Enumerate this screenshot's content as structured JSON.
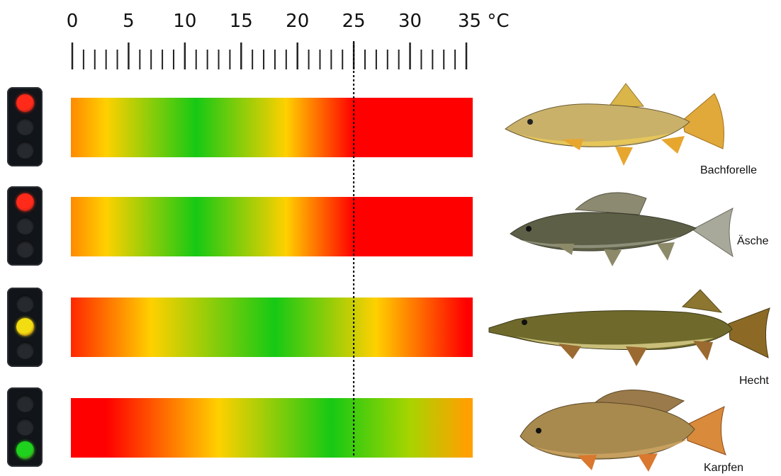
{
  "scale": {
    "unit": "°C",
    "tick_labels": [
      "0",
      "5",
      "10",
      "15",
      "20",
      "25",
      "30",
      "35 °C"
    ],
    "min": 0,
    "max": 35,
    "minor_step": 1,
    "marked_temperature": 25
  },
  "colors": {
    "red": "#ff0000",
    "orange": "#ff8c00",
    "yellow": "#ffd400",
    "green": "#16c914"
  },
  "rows": [
    {
      "name": "Bachforelle",
      "light": "red",
      "gradient_stops": [
        {
          "t": 0,
          "color": "#ff8c00"
        },
        {
          "t": 3,
          "color": "#ffd000"
        },
        {
          "t": 11,
          "color": "#16c914"
        },
        {
          "t": 19,
          "color": "#ffd000"
        },
        {
          "t": 25,
          "color": "#ff0000"
        },
        {
          "t": 35,
          "color": "#ff0000"
        }
      ]
    },
    {
      "name": "Äsche",
      "light": "red",
      "gradient_stops": [
        {
          "t": 0,
          "color": "#ff8c00"
        },
        {
          "t": 3,
          "color": "#ffd000"
        },
        {
          "t": 11,
          "color": "#16c914"
        },
        {
          "t": 19,
          "color": "#ffd000"
        },
        {
          "t": 25,
          "color": "#ff0000"
        },
        {
          "t": 35,
          "color": "#ff0000"
        }
      ]
    },
    {
      "name": "Hecht",
      "light": "yellow",
      "gradient_stops": [
        {
          "t": 0,
          "color": "#ff2a00"
        },
        {
          "t": 7,
          "color": "#ffd000"
        },
        {
          "t": 18,
          "color": "#16c914"
        },
        {
          "t": 27,
          "color": "#ffd000"
        },
        {
          "t": 35,
          "color": "#ff0000"
        }
      ]
    },
    {
      "name": "Karpfen",
      "light": "green",
      "gradient_stops": [
        {
          "t": 0,
          "color": "#ff0000"
        },
        {
          "t": 3,
          "color": "#ff0000"
        },
        {
          "t": 13,
          "color": "#ffd000"
        },
        {
          "t": 23,
          "color": "#16c914"
        },
        {
          "t": 30,
          "color": "#a8d400"
        },
        {
          "t": 35,
          "color": "#ffa000"
        }
      ]
    }
  ]
}
